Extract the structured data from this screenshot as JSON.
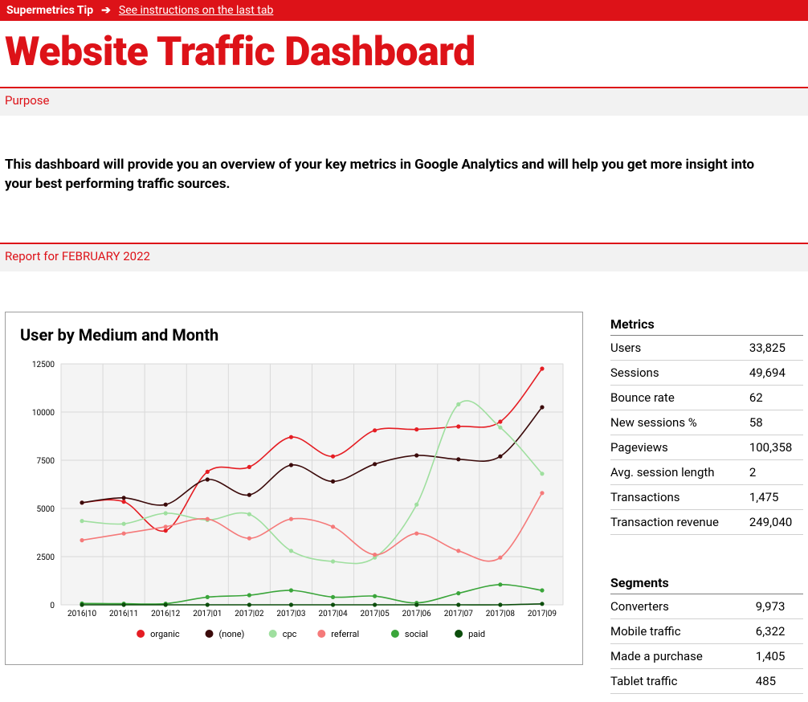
{
  "banner": {
    "tip_label": "Supermetrics Tip",
    "link_text": "See instructions on the last tab"
  },
  "page_title": "Website Traffic Dashboard",
  "sections": {
    "purpose_label": "Purpose",
    "purpose_body": "This dashboard will provide you an overview of your key metrics in Google Analytics and will help you get more insight into your best performing traffic sources.",
    "report_for": "Report for FEBRUARY 2022"
  },
  "chart": {
    "title": "User by Medium and Month",
    "type": "line",
    "categories": [
      "2016|10",
      "2016|11",
      "2016|12",
      "2017|01",
      "2017|02",
      "2017|03",
      "2017|04",
      "2017|05",
      "2017|06",
      "2017|07",
      "2017|08",
      "2017|09"
    ],
    "ylim": [
      0,
      12500
    ],
    "ytick_step": 2500,
    "yticks_labels": [
      "0",
      "2500",
      "5000",
      "7500",
      "10000",
      "12500"
    ],
    "background_color": "#f4f4f4",
    "grid_color": "#d9d9d9",
    "axis_label_fontsize": 10,
    "tick_fontsize": 10,
    "legend_fontsize": 11,
    "line_width": 1.6,
    "marker_radius": 2.6,
    "series": [
      {
        "name": "organic",
        "color": "#e51d23",
        "values": [
          5300,
          5350,
          3850,
          6900,
          7150,
          8700,
          7700,
          9050,
          9100,
          9250,
          9500,
          12250
        ]
      },
      {
        "name": "(none)",
        "color": "#3b0a0a",
        "values": [
          5300,
          5550,
          5200,
          6500,
          5700,
          7250,
          6400,
          7300,
          7750,
          7550,
          7700,
          10250
        ]
      },
      {
        "name": "cpc",
        "color": "#9fdf9f",
        "values": [
          4350,
          4200,
          4750,
          4400,
          4700,
          2800,
          2250,
          2450,
          5200,
          10400,
          9200,
          6800
        ]
      },
      {
        "name": "referral",
        "color": "#f57a7a",
        "values": [
          3350,
          3700,
          4050,
          4450,
          3450,
          4450,
          4050,
          2600,
          3700,
          2800,
          2450,
          5800
        ]
      },
      {
        "name": "social",
        "color": "#3aa53a",
        "values": [
          70,
          60,
          60,
          400,
          500,
          750,
          400,
          450,
          100,
          600,
          1050,
          750
        ]
      },
      {
        "name": "paid",
        "color": "#0c4d0c",
        "values": [
          0,
          0,
          0,
          0,
          0,
          0,
          0,
          0,
          0,
          0,
          0,
          50
        ]
      }
    ]
  },
  "metrics": {
    "header": "Metrics",
    "rows": [
      {
        "label": "Users",
        "value": "33,825"
      },
      {
        "label": "Sessions",
        "value": "49,694"
      },
      {
        "label": "Bounce rate",
        "value": "62"
      },
      {
        "label": "New sessions %",
        "value": "58"
      },
      {
        "label": "Pageviews",
        "value": "100,358"
      },
      {
        "label": "Avg. session length",
        "value": "2"
      },
      {
        "label": "Transactions",
        "value": "1,475"
      },
      {
        "label": "Transaction revenue",
        "value": "249,040"
      }
    ]
  },
  "segments": {
    "header": "Segments",
    "rows": [
      {
        "label": "Converters",
        "value": "9,973"
      },
      {
        "label": "Mobile traffic",
        "value": "6,322"
      },
      {
        "label": "Made a purchase",
        "value": "1,405"
      },
      {
        "label": "Tablet traffic",
        "value": "485"
      }
    ]
  }
}
